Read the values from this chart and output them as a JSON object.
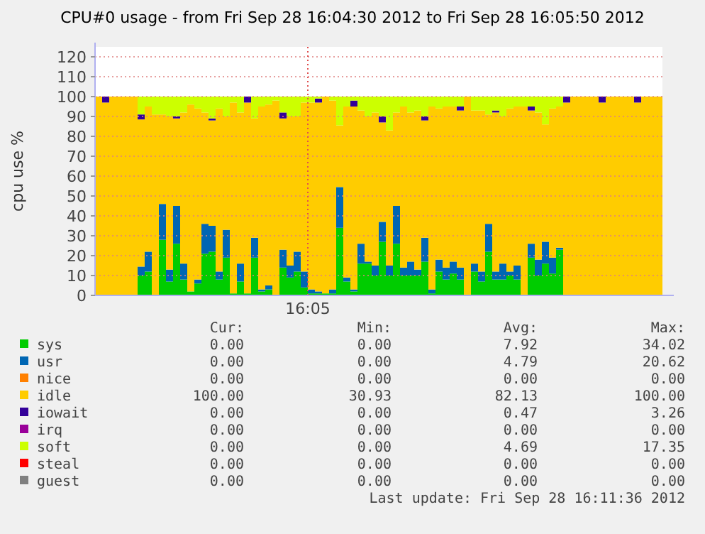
{
  "chart_data": {
    "type": "bar",
    "stacked": true,
    "title": "CPU#0 usage - from Fri Sep 28 16:04:30 2012 to Fri Sep 28 16:05:50 2012",
    "ylabel": "cpu use %",
    "ylim": [
      0,
      125
    ],
    "yticks": [
      0,
      10,
      20,
      30,
      40,
      50,
      60,
      70,
      80,
      90,
      100,
      110,
      120
    ],
    "grid": true,
    "legend": "bottom",
    "categories": [
      null,
      null,
      null,
      null,
      null,
      null,
      null,
      null,
      null,
      null,
      null,
      null,
      null,
      null,
      null,
      null,
      null,
      null,
      null,
      null,
      null,
      null,
      null,
      null,
      null,
      null,
      null,
      null,
      null,
      null,
      "16:05",
      null,
      null,
      null,
      null,
      null,
      null,
      null,
      null,
      null,
      null,
      null,
      null,
      null,
      null,
      null,
      null,
      null,
      null,
      null,
      null,
      null,
      null,
      null,
      null,
      null,
      null,
      null,
      null,
      null,
      null,
      null,
      null,
      null,
      null,
      null,
      null,
      null,
      null,
      null,
      null,
      null,
      null,
      null,
      null,
      null,
      null,
      null,
      null,
      null
    ],
    "series": [
      {
        "name": "sys",
        "color": "#00cc00",
        "values": [
          0,
          0,
          0,
          0,
          0,
          0,
          10,
          12,
          0,
          28,
          7,
          26,
          8,
          2,
          6,
          21,
          22,
          8,
          19,
          1,
          7,
          1,
          19,
          2,
          3,
          0,
          14,
          9,
          12,
          4,
          1,
          1,
          1,
          1,
          34,
          7,
          2,
          16,
          16,
          10,
          27,
          10,
          26,
          10,
          10,
          10,
          17,
          1,
          12,
          8,
          11,
          8,
          0,
          12,
          7,
          22,
          8,
          8,
          10,
          8,
          0,
          19,
          10,
          16,
          11,
          23,
          0,
          0,
          0,
          0,
          0,
          0,
          0,
          0,
          0,
          0,
          0,
          0,
          0,
          0
        ]
      },
      {
        "name": "usr",
        "color": "#0066b3",
        "values": [
          0,
          0,
          0,
          0,
          0,
          0,
          4.5,
          10,
          0,
          18,
          6,
          19,
          8,
          0,
          2,
          15,
          13,
          4,
          14,
          0,
          9,
          0,
          10,
          1,
          2,
          0,
          9,
          6,
          10,
          8,
          2,
          1,
          0,
          2,
          20.5,
          2,
          1,
          10,
          1,
          5,
          10,
          5,
          19,
          4,
          7,
          3,
          12,
          2,
          6,
          6,
          6,
          6,
          0,
          4,
          5,
          14,
          4,
          8,
          2,
          7,
          0,
          7,
          8,
          11,
          8,
          1,
          0,
          0,
          0,
          0,
          0,
          0,
          0,
          0,
          0,
          0,
          0,
          0,
          0,
          0
        ]
      },
      {
        "name": "nice",
        "color": "#ff8000",
        "values": [
          0,
          0,
          0,
          0,
          0,
          0,
          0,
          0,
          0,
          0,
          0,
          0,
          0,
          0,
          0,
          0,
          0,
          0,
          0,
          0,
          0,
          0,
          0,
          0,
          0,
          0,
          0,
          0,
          0,
          0,
          0,
          0,
          0,
          0,
          0,
          0,
          0,
          0,
          0,
          0,
          0,
          0,
          0,
          0,
          0,
          0,
          0,
          0,
          0,
          0,
          0,
          0,
          0,
          0,
          0,
          0,
          0,
          0,
          0,
          0,
          0,
          0,
          0,
          0,
          0,
          0,
          0,
          0,
          0,
          0,
          0,
          0,
          0,
          0,
          0,
          0,
          0,
          0,
          0,
          0
        ]
      },
      {
        "name": "idle",
        "color": "#ffcc00",
        "values": [
          100,
          97,
          100,
          100,
          100,
          100,
          74,
          73,
          91,
          45,
          77,
          44,
          76,
          94,
          86,
          56,
          53,
          82,
          57,
          96,
          76,
          96,
          60,
          92,
          91,
          98,
          66,
          75,
          68,
          85,
          94,
          95,
          99,
          95,
          31,
          86,
          92,
          67,
          73,
          77,
          50,
          68,
          47,
          81,
          75,
          80,
          59,
          92,
          76,
          81,
          78,
          79,
          100,
          77,
          81,
          55,
          80,
          74,
          82,
          80,
          95,
          67,
          74,
          59,
          75,
          71,
          97,
          100,
          100,
          100,
          100,
          97,
          100,
          100,
          100,
          100,
          97,
          100,
          100,
          100
        ]
      },
      {
        "name": "iowait",
        "color": "#330099",
        "values": [
          0,
          3,
          0,
          0,
          0,
          0,
          2.5,
          0,
          0,
          0,
          0,
          1,
          0,
          0,
          0,
          0,
          1,
          0,
          0,
          0,
          0,
          3,
          0,
          0,
          0,
          0,
          3,
          0,
          0,
          0,
          0,
          2,
          0,
          0,
          0,
          0,
          3,
          0,
          0,
          0,
          3,
          0,
          0,
          0,
          0,
          0,
          2,
          0,
          0,
          0,
          0,
          2,
          0,
          0,
          0,
          0,
          1,
          0,
          0,
          0,
          0,
          2,
          0,
          0,
          0,
          0,
          3,
          0,
          0,
          0,
          0,
          3,
          0,
          0,
          0,
          0,
          3,
          0,
          0,
          0
        ]
      },
      {
        "name": "irq",
        "color": "#990099",
        "values": [
          0,
          0,
          0,
          0,
          0,
          0,
          0,
          0,
          0,
          0,
          0,
          0,
          0,
          0,
          0,
          0,
          0,
          0,
          0,
          0,
          0,
          0,
          0,
          0,
          0,
          0,
          0,
          0,
          0,
          0,
          0,
          0,
          0,
          0,
          0,
          0,
          0,
          0,
          0,
          0,
          0,
          0,
          0,
          0,
          0,
          0,
          0,
          0,
          0,
          0,
          0,
          0,
          0,
          0,
          0,
          0,
          0,
          0,
          0,
          0,
          0,
          0,
          0,
          0,
          0,
          0,
          0,
          0,
          0,
          0,
          0,
          0,
          0,
          0,
          0,
          0,
          0,
          0,
          0,
          0
        ]
      },
      {
        "name": "soft",
        "color": "#ccff00",
        "values": [
          0,
          0,
          0,
          0,
          0,
          0,
          9,
          5,
          9,
          9,
          10,
          10,
          8,
          4,
          6,
          8,
          11,
          6,
          10,
          3,
          8,
          0,
          11,
          5,
          4,
          2,
          8,
          10,
          10,
          3,
          3,
          1,
          0,
          2,
          14.5,
          5,
          2,
          7,
          10,
          8,
          10,
          17,
          8,
          5,
          8,
          7,
          10,
          5,
          6,
          5,
          5,
          5,
          0,
          7,
          7,
          9,
          7,
          10,
          6,
          5,
          5,
          5,
          8,
          14,
          6,
          5,
          0,
          0,
          0,
          0,
          0,
          0,
          0,
          0,
          0,
          0,
          0,
          0,
          0,
          0
        ]
      },
      {
        "name": "steal",
        "color": "#ff0000",
        "values": [
          0,
          0,
          0,
          0,
          0,
          0,
          0,
          0,
          0,
          0,
          0,
          0,
          0,
          0,
          0,
          0,
          0,
          0,
          0,
          0,
          0,
          0,
          0,
          0,
          0,
          0,
          0,
          0,
          0,
          0,
          0,
          0,
          0,
          0,
          0,
          0,
          0,
          0,
          0,
          0,
          0,
          0,
          0,
          0,
          0,
          0,
          0,
          0,
          0,
          0,
          0,
          0,
          0,
          0,
          0,
          0,
          0,
          0,
          0,
          0,
          0,
          0,
          0,
          0,
          0,
          0,
          0,
          0,
          0,
          0,
          0,
          0,
          0,
          0,
          0,
          0,
          0,
          0,
          0,
          0
        ]
      },
      {
        "name": "guest",
        "color": "#808080",
        "values": [
          0,
          0,
          0,
          0,
          0,
          0,
          0,
          0,
          0,
          0,
          0,
          0,
          0,
          0,
          0,
          0,
          0,
          0,
          0,
          0,
          0,
          0,
          0,
          0,
          0,
          0,
          0,
          0,
          0,
          0,
          0,
          0,
          0,
          0,
          0,
          0,
          0,
          0,
          0,
          0,
          0,
          0,
          0,
          0,
          0,
          0,
          0,
          0,
          0,
          0,
          0,
          0,
          0,
          0,
          0,
          0,
          0,
          0,
          0,
          0,
          0,
          0,
          0,
          0,
          0,
          0,
          0,
          0,
          0,
          0,
          0,
          0,
          0,
          0,
          0,
          0,
          0,
          0,
          0,
          0
        ]
      }
    ],
    "annotations": [
      "Cur:",
      "Min:",
      "Avg:",
      "Max:",
      "0.00",
      "0.00",
      "7.92",
      "34.02",
      "0.00",
      "0.00",
      "4.79",
      "20.62",
      "0.00",
      "0.00",
      "0.00",
      "0.00",
      "100.00",
      "30.93",
      "82.13",
      "100.00",
      "0.00",
      "0.00",
      "0.47",
      "3.26",
      "0.00",
      "0.00",
      "0.00",
      "0.00",
      "0.00",
      "0.00",
      "4.69",
      "17.35",
      "0.00",
      "0.00",
      "0.00",
      "0.00",
      "0.00",
      "0.00",
      "0.00",
      "0.00",
      "Last update: Fri Sep 28 16:11:36 2012"
    ]
  }
}
